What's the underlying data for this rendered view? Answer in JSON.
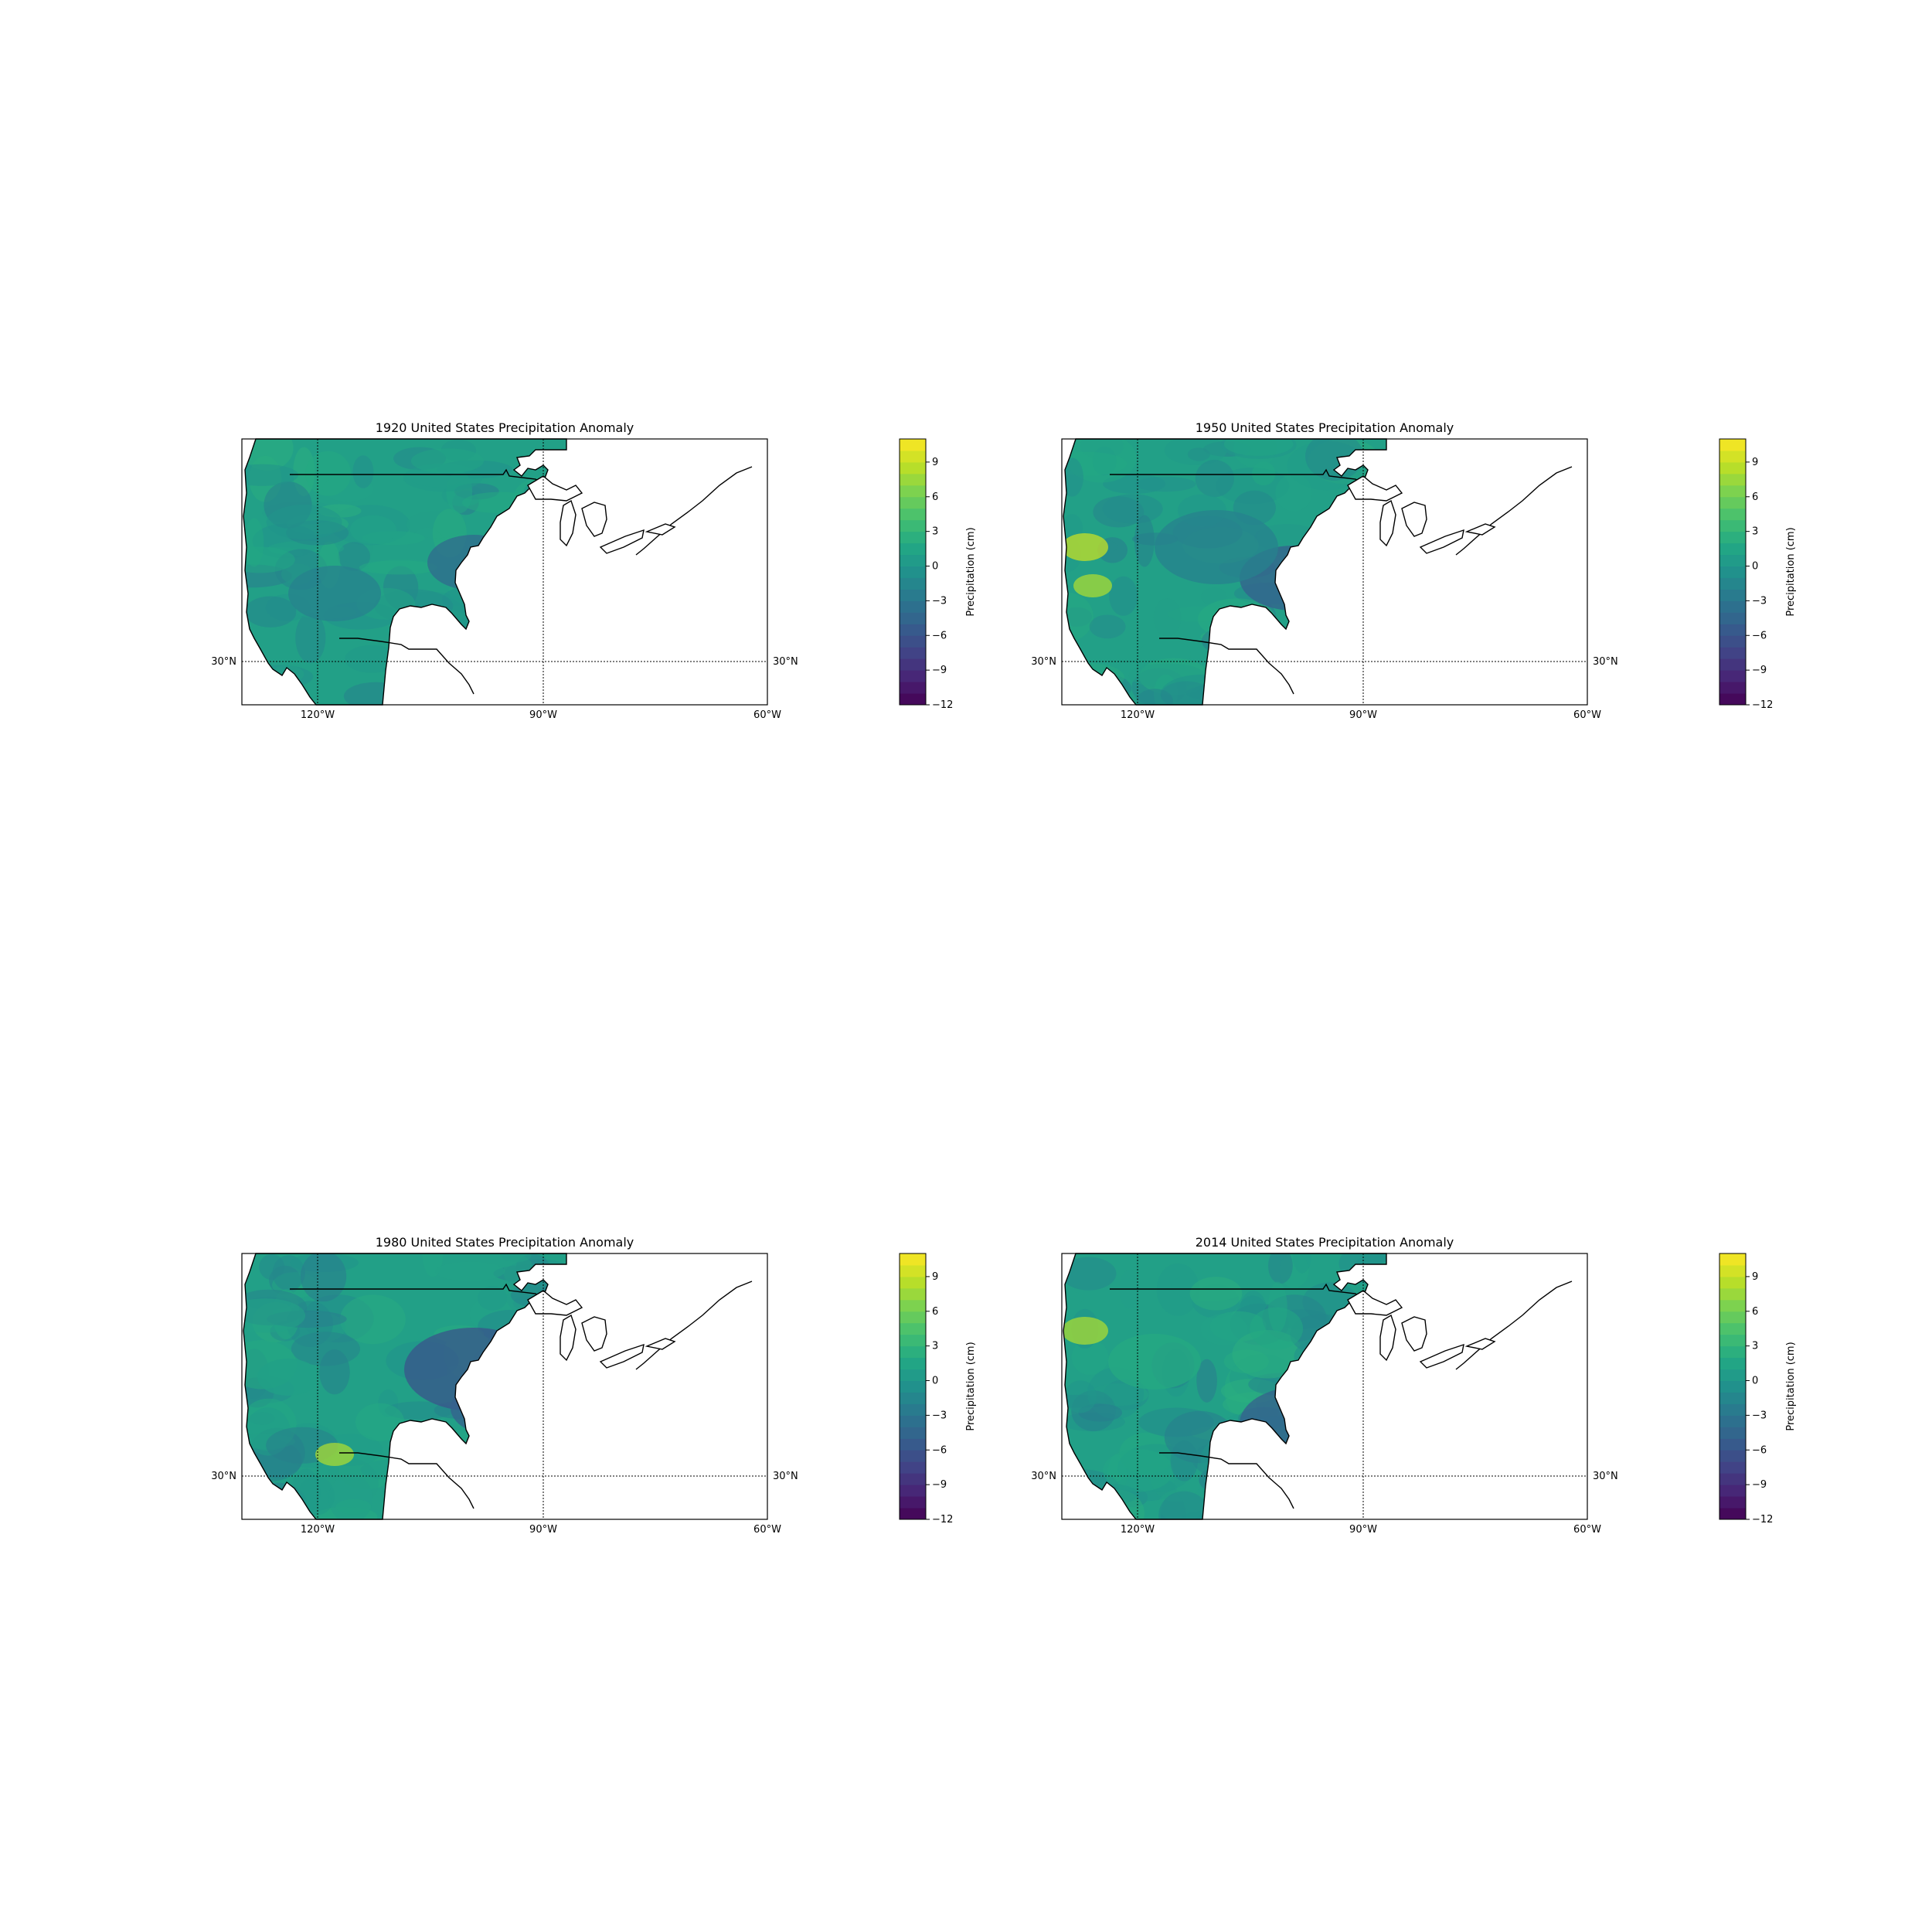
{
  "figure": {
    "panels": [
      {
        "title": "1920 United States Precipitation Anomaly",
        "blob_seed": 1
      },
      {
        "title": "1950 United States Precipitation Anomaly",
        "blob_seed": 2
      },
      {
        "title": "1980 United States Precipitation Anomaly",
        "blob_seed": 3
      },
      {
        "title": "2014 United States Precipitation Anomaly",
        "blob_seed": 4
      }
    ],
    "map": {
      "lon_ticks": [
        "120°W",
        "90°W",
        "60°W"
      ],
      "lat_tick": "30°N",
      "lon_range": [
        -130,
        -60
      ],
      "lat_range": [
        24.5,
        50
      ]
    },
    "colorbar": {
      "label": "Precipitation (cm)",
      "ticks": [
        "9",
        "6",
        "3",
        "0",
        "−3",
        "−6",
        "−9",
        "−12"
      ],
      "tick_values": [
        9,
        6,
        3,
        0,
        -3,
        -6,
        -9,
        -12
      ],
      "range": [
        -12,
        11
      ],
      "colormap": "viridis",
      "colors": [
        "#440154",
        "#482475",
        "#414487",
        "#355f8d",
        "#2a788e",
        "#21918c",
        "#22a884",
        "#44bf70",
        "#7ad151",
        "#bddf26",
        "#fde725"
      ]
    }
  },
  "chart_data": {
    "type": "heatmap",
    "panels": [
      {
        "title": "1920 United States Precipitation Anomaly"
      },
      {
        "title": "1950 United States Precipitation Anomaly"
      },
      {
        "title": "1980 United States Precipitation Anomaly"
      },
      {
        "title": "2014 United States Precipitation Anomaly"
      }
    ],
    "colorbar_label": "Precipitation (cm)",
    "colorbar_range": [
      -12,
      11
    ],
    "colorbar_ticks": [
      -12,
      -9,
      -6,
      -3,
      0,
      3,
      6,
      9
    ],
    "x_ticks": [
      "120°W",
      "90°W",
      "60°W"
    ],
    "y_ticks": [
      "30°N"
    ],
    "grid": true
  }
}
